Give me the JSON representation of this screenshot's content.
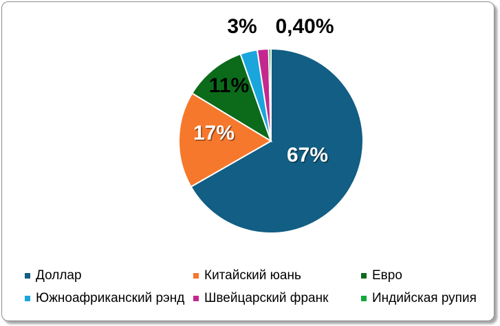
{
  "chart_data": {
    "type": "pie",
    "categories": [
      "Доллар",
      "Китайский юань",
      "Евро",
      "Южноафриканский рэнд",
      "Швейцарский франк",
      "Индийская рупия"
    ],
    "values": [
      67,
      17,
      11,
      3,
      2,
      0.4
    ],
    "data_labels": [
      "67%",
      "17%",
      "11%",
      "3%",
      "",
      "0,40%"
    ],
    "colors": [
      "#125e84",
      "#f6782c",
      "#0b6b1a",
      "#1aa6dd",
      "#c4288f",
      "#14a83b"
    ],
    "start_angle_deg": 0,
    "direction": "clockwise",
    "legend_position": "bottom",
    "title": ""
  }
}
